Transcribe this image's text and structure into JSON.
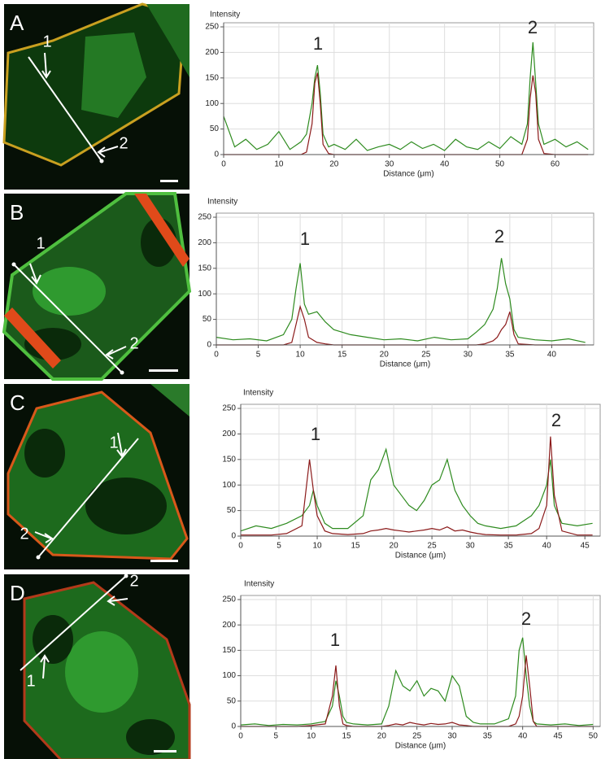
{
  "chart_data": [
    {
      "type": "line",
      "panel": "A",
      "image_labels": [
        "1",
        "2"
      ],
      "annotations": [
        "1",
        "2"
      ],
      "y_label": "Intensity",
      "x_label": "Distance (μm)",
      "x": [
        0,
        2,
        4,
        6,
        8,
        10,
        12,
        14,
        15,
        16,
        16.5,
        17,
        17.5,
        18,
        19,
        20,
        22,
        24,
        26,
        28,
        30,
        32,
        34,
        36,
        38,
        40,
        42,
        44,
        46,
        48,
        50,
        52,
        54,
        55,
        55.5,
        56,
        56.5,
        57,
        58,
        60,
        62,
        64,
        66
      ],
      "series": [
        {
          "color": "#2e8b1f",
          "values": [
            75,
            15,
            30,
            10,
            20,
            45,
            10,
            25,
            40,
            100,
            150,
            175,
            120,
            40,
            15,
            20,
            10,
            30,
            8,
            15,
            20,
            10,
            25,
            12,
            20,
            8,
            30,
            15,
            10,
            25,
            12,
            35,
            20,
            60,
            150,
            220,
            140,
            60,
            20,
            30,
            15,
            25,
            10
          ]
        },
        {
          "color": "#8b1a1a",
          "values": [
            0,
            0,
            0,
            0,
            0,
            0,
            0,
            0,
            5,
            60,
            140,
            160,
            100,
            20,
            2,
            0,
            0,
            0,
            0,
            0,
            0,
            0,
            0,
            0,
            0,
            0,
            0,
            0,
            0,
            0,
            0,
            0,
            0,
            30,
            110,
            155,
            120,
            30,
            2,
            0,
            0,
            0,
            0
          ]
        }
      ],
      "xlim": [
        0,
        67
      ],
      "xticks": [
        0,
        10,
        20,
        30,
        40,
        50,
        60
      ],
      "ylim": [
        0,
        258
      ],
      "yticks": [
        0,
        50,
        100,
        150,
        200,
        250
      ],
      "grid": true
    },
    {
      "type": "line",
      "panel": "B",
      "image_labels": [
        "1",
        "2"
      ],
      "annotations": [
        "1",
        "2"
      ],
      "y_label": "Intensity",
      "x_label": "Distance (μm)",
      "x": [
        0,
        2,
        4,
        6,
        8,
        9,
        9.5,
        10,
        10.5,
        11,
        12,
        13,
        14,
        16,
        18,
        20,
        22,
        24,
        26,
        28,
        30,
        31,
        32,
        33,
        33.5,
        34,
        34.5,
        35,
        35.5,
        36,
        38,
        40,
        42,
        44
      ],
      "series": [
        {
          "color": "#2e8b1f",
          "values": [
            15,
            10,
            12,
            8,
            20,
            50,
            110,
            160,
            80,
            60,
            65,
            45,
            30,
            20,
            15,
            10,
            12,
            8,
            15,
            10,
            12,
            25,
            40,
            70,
            110,
            170,
            120,
            90,
            30,
            15,
            10,
            8,
            12,
            5
          ]
        },
        {
          "color": "#8b1a1a",
          "values": [
            0,
            0,
            0,
            0,
            0,
            5,
            40,
            75,
            50,
            15,
            5,
            2,
            0,
            0,
            0,
            0,
            0,
            0,
            0,
            0,
            0,
            0,
            2,
            8,
            15,
            30,
            40,
            65,
            20,
            2,
            0,
            0,
            0,
            0
          ]
        }
      ],
      "xlim": [
        0,
        45
      ],
      "xticks": [
        0,
        5,
        10,
        15,
        20,
        25,
        30,
        35,
        40
      ],
      "ylim": [
        0,
        258
      ],
      "yticks": [
        0,
        50,
        100,
        150,
        200,
        250
      ],
      "grid": true
    },
    {
      "type": "line",
      "panel": "C",
      "image_labels": [
        "1",
        "2"
      ],
      "annotations": [
        "1",
        "2"
      ],
      "y_label": "Intensity",
      "x_label": "Distance (μm)",
      "x": [
        0,
        2,
        4,
        6,
        8,
        9,
        9.5,
        10,
        11,
        12,
        14,
        16,
        17,
        18,
        19,
        20,
        21,
        22,
        23,
        24,
        25,
        26,
        27,
        28,
        29,
        30,
        31,
        32,
        34,
        36,
        38,
        39,
        40,
        40.5,
        41,
        42,
        44,
        46
      ],
      "series": [
        {
          "color": "#2e8b1f",
          "values": [
            10,
            20,
            15,
            25,
            40,
            60,
            90,
            60,
            25,
            15,
            15,
            40,
            110,
            130,
            170,
            100,
            80,
            60,
            50,
            70,
            100,
            110,
            150,
            90,
            60,
            40,
            25,
            20,
            15,
            20,
            40,
            60,
            100,
            150,
            60,
            25,
            20,
            25
          ]
        },
        {
          "color": "#8b1a1a",
          "values": [
            2,
            2,
            2,
            5,
            20,
            150,
            90,
            40,
            10,
            5,
            3,
            5,
            10,
            12,
            15,
            12,
            10,
            8,
            10,
            12,
            15,
            12,
            18,
            10,
            12,
            8,
            5,
            3,
            2,
            2,
            5,
            15,
            60,
            195,
            80,
            10,
            2,
            2
          ]
        }
      ],
      "xlim": [
        0,
        47
      ],
      "xticks": [
        0,
        5,
        10,
        15,
        20,
        25,
        30,
        35,
        40,
        45
      ],
      "ylim": [
        0,
        258
      ],
      "yticks": [
        0,
        50,
        100,
        150,
        200,
        250
      ],
      "grid": true
    },
    {
      "type": "line",
      "panel": "D",
      "image_labels": [
        "1",
        "2"
      ],
      "annotations": [
        "1",
        "2"
      ],
      "y_label": "Intensity",
      "x_label": "Distance (μm)",
      "x": [
        0,
        2,
        4,
        6,
        8,
        10,
        12,
        13,
        13.5,
        14,
        14.5,
        15,
        16,
        18,
        20,
        21,
        22,
        23,
        24,
        25,
        26,
        27,
        28,
        29,
        30,
        31,
        32,
        33,
        34,
        36,
        38,
        39,
        39.5,
        40,
        40.5,
        41,
        41.5,
        42,
        44,
        46,
        48,
        50
      ],
      "series": [
        {
          "color": "#2e8b1f",
          "values": [
            3,
            5,
            2,
            4,
            3,
            5,
            10,
            40,
            90,
            60,
            20,
            8,
            5,
            3,
            5,
            40,
            110,
            80,
            70,
            90,
            60,
            75,
            70,
            50,
            100,
            80,
            20,
            8,
            5,
            5,
            15,
            60,
            150,
            175,
            100,
            40,
            10,
            5,
            3,
            5,
            2,
            4
          ]
        },
        {
          "color": "#8b1a1a",
          "values": [
            0,
            0,
            0,
            0,
            0,
            2,
            5,
            60,
            120,
            40,
            5,
            2,
            0,
            0,
            0,
            2,
            5,
            3,
            8,
            5,
            3,
            6,
            4,
            5,
            8,
            3,
            2,
            0,
            0,
            0,
            0,
            5,
            20,
            60,
            140,
            80,
            10,
            0,
            0,
            0,
            0,
            0
          ]
        }
      ],
      "xlim": [
        0,
        51
      ],
      "xticks": [
        0,
        5,
        10,
        15,
        20,
        25,
        30,
        35,
        40,
        45,
        50
      ],
      "ylim": [
        0,
        258
      ],
      "yticks": [
        0,
        50,
        100,
        150,
        200,
        250
      ],
      "grid": true
    }
  ]
}
